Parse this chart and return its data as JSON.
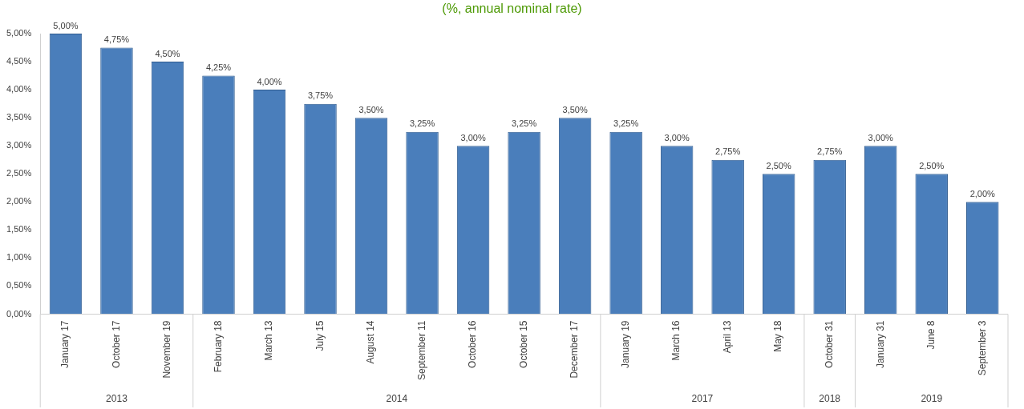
{
  "chart_data": {
    "type": "bar",
    "subtitle": "(%, annual nominal rate)",
    "categories": [
      "January 17",
      "October 17",
      "November 19",
      "February 18",
      "March 13",
      "July 15",
      "August 14",
      "September 11",
      "October 16",
      "October 15",
      "December 17",
      "January 19",
      "March 16",
      "April 13",
      "May 18",
      "October 31",
      "January 31",
      "June 8",
      "September 3"
    ],
    "values": [
      5.0,
      4.75,
      4.5,
      4.25,
      4.0,
      3.75,
      3.5,
      3.25,
      3.0,
      3.25,
      3.5,
      3.25,
      3.0,
      2.75,
      2.5,
      2.75,
      3.0,
      2.5,
      2.0
    ],
    "value_labels": [
      "5,00%",
      "4,75%",
      "4,50%",
      "4,25%",
      "4,00%",
      "3,75%",
      "3,50%",
      "3,25%",
      "3,00%",
      "3,25%",
      "3,50%",
      "3,25%",
      "3,00%",
      "2,75%",
      "2,50%",
      "2,75%",
      "3,00%",
      "2,50%",
      "2,00%"
    ],
    "color": "#4a7ebb",
    "ylim": [
      0,
      5.0
    ],
    "yticks": [
      {
        "value": 0,
        "label": "0,00%"
      },
      {
        "value": 0.5,
        "label": "0,50%"
      },
      {
        "value": 1.0,
        "label": "1,00%"
      },
      {
        "value": 1.5,
        "label": "1,50%"
      },
      {
        "value": 2.0,
        "label": "2,00%"
      },
      {
        "value": 2.5,
        "label": "2,50%"
      },
      {
        "value": 3.0,
        "label": "3,00%"
      },
      {
        "value": 3.5,
        "label": "3,50%"
      },
      {
        "value": 4.0,
        "label": "4,00%"
      },
      {
        "value": 4.5,
        "label": "4,50%"
      },
      {
        "value": 5.0,
        "label": "5,00%"
      }
    ],
    "annotations": [
      "2013",
      "2014",
      "2017",
      "2018",
      "2019"
    ],
    "grid": false,
    "legend": false
  }
}
